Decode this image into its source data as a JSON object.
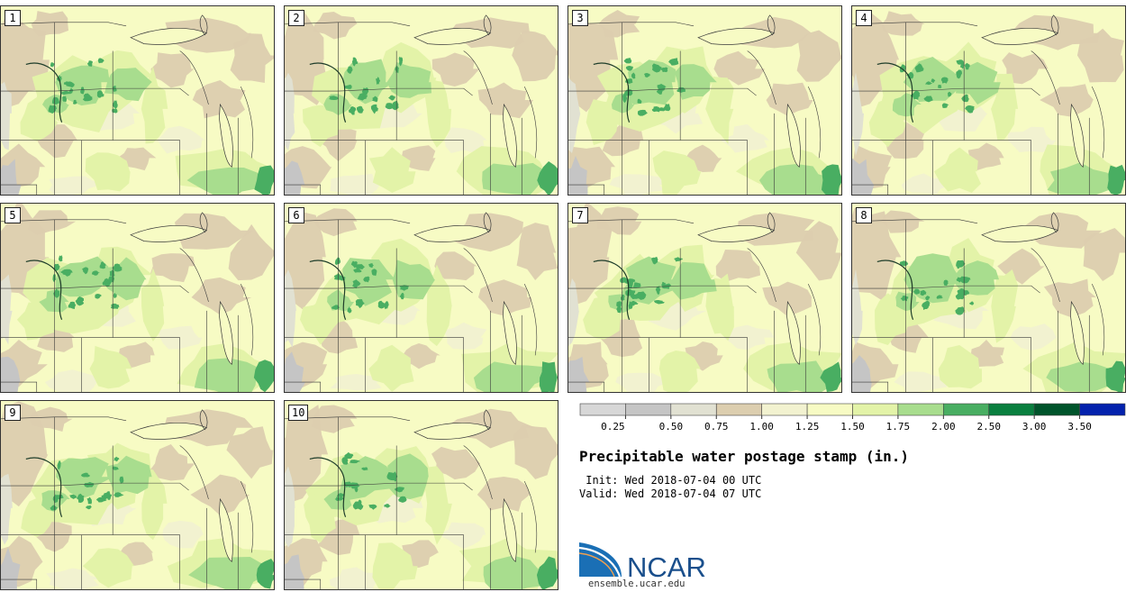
{
  "members": [
    "1",
    "2",
    "3",
    "4",
    "5",
    "6",
    "7",
    "8",
    "9",
    "10"
  ],
  "legend": {
    "ticks": [
      "0.25",
      "0.50",
      "0.75",
      "1.00",
      "1.25",
      "1.50",
      "1.75",
      "2.00",
      "2.50",
      "3.00",
      "3.50"
    ],
    "colors": [
      "#d7d7d7",
      "#c5c5c5",
      "#e1e1d2",
      "#dcceaf",
      "#f2f2d0",
      "#f7fbc4",
      "#e3f3a8",
      "#a8dd8e",
      "#49ae62",
      "#0a7f3f",
      "#00542b",
      "#0422ad"
    ]
  },
  "title": "Precipitable water postage stamp (in.)",
  "init_text": " Init: Wed 2018-07-04 00 UTC",
  "valid_text": "Valid: Wed 2018-07-04 07 UTC",
  "logo": {
    "name": "NCAR",
    "url": "ensemble.ucar.edu"
  }
}
